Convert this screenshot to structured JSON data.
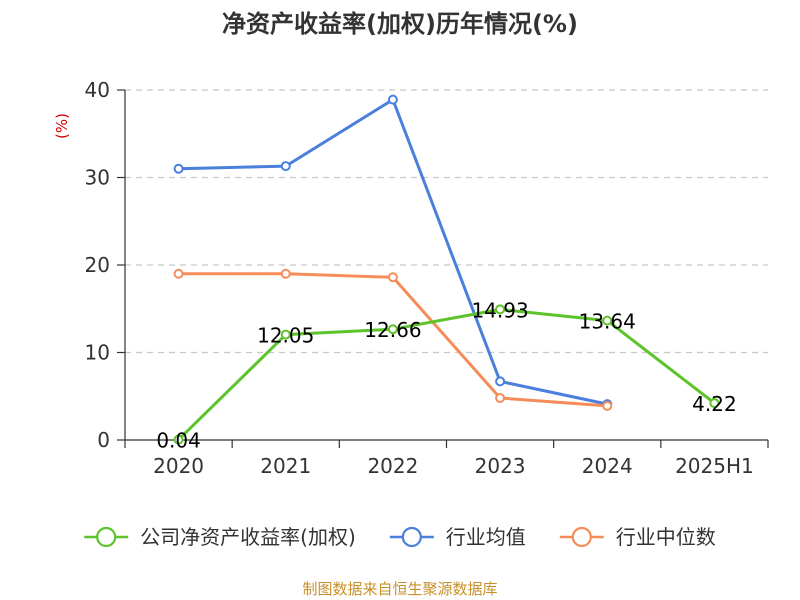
{
  "chart_data": {
    "type": "line",
    "title": "净资产收益率(加权)历年情况(%)",
    "ylabel": "(%)",
    "xlabel": "",
    "categories": [
      "2020",
      "2021",
      "2022",
      "2023",
      "2024",
      "2025H1"
    ],
    "ylim": [
      0,
      40
    ],
    "yticks": [
      0,
      10,
      20,
      30,
      40
    ],
    "grid": true,
    "legend_position": "bottom",
    "series": [
      {
        "name": "公司净资产收益率(加权)",
        "color": "#5cc42a",
        "values": [
          0.04,
          12.05,
          12.66,
          14.93,
          13.64,
          4.22
        ],
        "data_labels": [
          "0.04",
          "12.05",
          "12.66",
          "14.93",
          "13.64",
          "4.22"
        ]
      },
      {
        "name": "行业均值",
        "color": "#4a7fdc",
        "values": [
          31.0,
          31.3,
          38.9,
          6.7,
          4.1,
          null
        ]
      },
      {
        "name": "行业中位数",
        "color": "#f58c5a",
        "values": [
          19.0,
          19.0,
          18.6,
          4.8,
          3.9,
          null
        ]
      }
    ]
  },
  "source_text": "制图数据来自恒生聚源数据库"
}
